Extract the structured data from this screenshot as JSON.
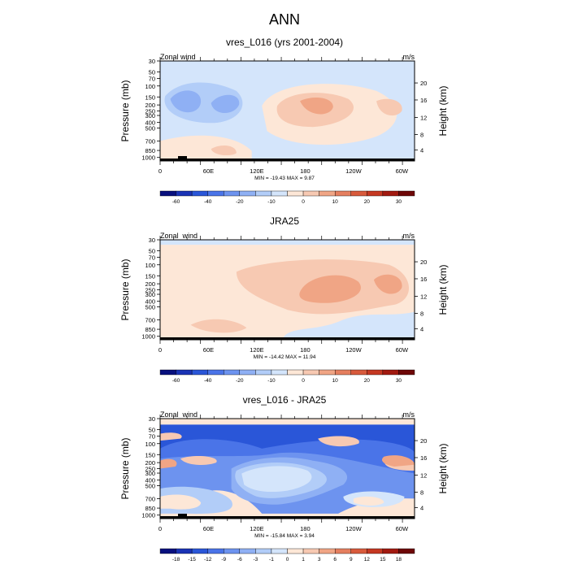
{
  "main_title": "ANN",
  "colors": {
    "bg": "#ffffff",
    "frame": "#000000"
  },
  "chart_data": [
    {
      "type": "heatmap",
      "title": "vres_L016 (yrs 2001-2004)",
      "variable_label": "Zonal wind",
      "units": "m/s",
      "ylabel_left": "Pressure (mb)",
      "ylabel_right": "Height (km)",
      "pressure_ticks": [
        "30",
        "50",
        "70",
        "100",
        "150",
        "200",
        "250",
        "300",
        "400",
        "500",
        "700",
        "850",
        "1000"
      ],
      "height_ticks": [
        "20",
        "16",
        "12",
        "8",
        "4"
      ],
      "lon_ticks": [
        "0",
        "60E",
        "120E",
        "180",
        "120W",
        "60W"
      ],
      "stats": "MIN = -19.43  MAX =   9.87",
      "colorbar": {
        "labels": [
          "-60",
          "-40",
          "-20",
          "-10",
          "0",
          "10",
          "20",
          "30"
        ],
        "colors": [
          "#08107e",
          "#1a33b5",
          "#2a56d8",
          "#4a74e8",
          "#6d93ef",
          "#8fb0f4",
          "#b2cdf8",
          "#d4e5fb",
          "#fde7d7",
          "#f7c9b2",
          "#f0a585",
          "#e57f5f",
          "#d85a3c",
          "#c53822",
          "#a21a10",
          "#6e0707"
        ]
      },
      "regions": [
        {
          "level": "-5 to 0",
          "color": "#d4e5fb"
        },
        {
          "level": "-10 to -5",
          "color": "#b2cdf8"
        },
        {
          "level": "-20 to -10",
          "color": "#8fb0f4"
        },
        {
          "level": "0 to 5",
          "color": "#fde7d7"
        },
        {
          "level": "5 to 10",
          "color": "#f7c9b2"
        },
        {
          "level": "10 to 15",
          "color": "#f0a585"
        }
      ]
    },
    {
      "type": "heatmap",
      "title": "JRA25",
      "variable_label": "Zonal_wind",
      "units": "m/s",
      "ylabel_left": "Pressure (mb)",
      "ylabel_right": "Height (km)",
      "pressure_ticks": [
        "30",
        "50",
        "70",
        "100",
        "150",
        "200",
        "250",
        "300",
        "400",
        "500",
        "700",
        "850",
        "1000"
      ],
      "height_ticks": [
        "20",
        "16",
        "12",
        "8",
        "4"
      ],
      "lon_ticks": [
        "0",
        "60E",
        "120E",
        "180",
        "120W",
        "60W"
      ],
      "stats": "MIN = -14.42  MAX =  11.94",
      "colorbar": {
        "labels": [
          "-60",
          "-40",
          "-20",
          "-10",
          "0",
          "10",
          "20",
          "30"
        ],
        "colors": [
          "#08107e",
          "#1a33b5",
          "#2a56d8",
          "#4a74e8",
          "#6d93ef",
          "#8fb0f4",
          "#b2cdf8",
          "#d4e5fb",
          "#fde7d7",
          "#f7c9b2",
          "#f0a585",
          "#e57f5f",
          "#d85a3c",
          "#c53822",
          "#a21a10",
          "#6e0707"
        ]
      },
      "regions": [
        {
          "level": "-5 to 0",
          "color": "#d4e5fb"
        },
        {
          "level": "-10 to -5",
          "color": "#b2cdf8"
        },
        {
          "level": "0 to 5",
          "color": "#fde7d7"
        },
        {
          "level": "5 to 10",
          "color": "#f7c9b2"
        },
        {
          "level": "10 to 15",
          "color": "#f0a585"
        }
      ]
    },
    {
      "type": "heatmap",
      "title": "vres_L016 - JRA25",
      "variable_label": "Zonal_wind",
      "units": "m/s",
      "ylabel_left": "Pressure (mb)",
      "ylabel_right": "Height (km)",
      "pressure_ticks": [
        "30",
        "50",
        "70",
        "100",
        "150",
        "200",
        "250",
        "300",
        "400",
        "500",
        "700",
        "850",
        "1000"
      ],
      "height_ticks": [
        "20",
        "16",
        "12",
        "8",
        "4"
      ],
      "lon_ticks": [
        "0",
        "60E",
        "120E",
        "180",
        "120W",
        "60W"
      ],
      "stats": "MIN = -15.84  MAX =   3.94",
      "colorbar": {
        "labels": [
          "-18",
          "-15",
          "-12",
          "-9",
          "-6",
          "-3",
          "-1",
          "0",
          "1",
          "3",
          "6",
          "9",
          "12",
          "15",
          "18"
        ],
        "colors": [
          "#08107e",
          "#1a33b5",
          "#2a56d8",
          "#4a74e8",
          "#6d93ef",
          "#8fb0f4",
          "#b2cdf8",
          "#d4e5fb",
          "#fde7d7",
          "#f7c9b2",
          "#f0a585",
          "#e57f5f",
          "#d85a3c",
          "#c53822",
          "#a21a10",
          "#6e0707"
        ]
      },
      "regions": [
        {
          "level": "-15 to -12",
          "color": "#2a56d8"
        },
        {
          "level": "-12 to -9",
          "color": "#4a74e8"
        },
        {
          "level": "-9 to -6",
          "color": "#6d93ef"
        },
        {
          "level": "-6 to -3",
          "color": "#8fb0f4"
        },
        {
          "level": "-3 to -1",
          "color": "#b2cdf8"
        },
        {
          "level": "-1 to 0",
          "color": "#d4e5fb"
        },
        {
          "level": "0 to 1",
          "color": "#fde7d7"
        },
        {
          "level": "1 to 3",
          "color": "#f7c9b2"
        },
        {
          "level": "3 to 6",
          "color": "#f0a585"
        }
      ]
    }
  ]
}
